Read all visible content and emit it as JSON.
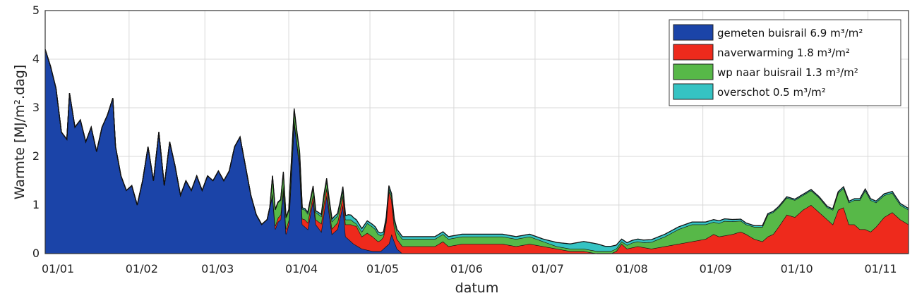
{
  "chart_data": {
    "type": "area",
    "stacked": true,
    "xlabel": "datum",
    "ylabel": "Warmte [MJ/m².dag]",
    "ylim": [
      0,
      5
    ],
    "y_ticks": [
      "0",
      "1",
      "2",
      "3",
      "4",
      "5"
    ],
    "x_ticks": [
      {
        "label": "01/01",
        "day": 1
      },
      {
        "label": "01/02",
        "day": 32
      },
      {
        "label": "01/03",
        "day": 60
      },
      {
        "label": "01/04",
        "day": 91
      },
      {
        "label": "01/05",
        "day": 121
      },
      {
        "label": "01/06",
        "day": 152
      },
      {
        "label": "01/07",
        "day": 182
      },
      {
        "label": "01/08",
        "day": 213
      },
      {
        "label": "01/09",
        "day": 244
      },
      {
        "label": "01/10",
        "day": 274
      },
      {
        "label": "01/11",
        "day": 305
      }
    ],
    "xlim_days": [
      1,
      320
    ],
    "grid": true,
    "legend_position": "top-right",
    "series": [
      {
        "name": "gemeten buisrail 6.9 m³/m²",
        "color": "#1b44a8",
        "points": [
          [
            1,
            4.2
          ],
          [
            3,
            3.85
          ],
          [
            5,
            3.4
          ],
          [
            7,
            2.5
          ],
          [
            9,
            2.35
          ],
          [
            10,
            3.3
          ],
          [
            12,
            2.6
          ],
          [
            14,
            2.75
          ],
          [
            16,
            2.3
          ],
          [
            18,
            2.6
          ],
          [
            20,
            2.1
          ],
          [
            22,
            2.6
          ],
          [
            24,
            2.85
          ],
          [
            26,
            3.2
          ],
          [
            27,
            2.2
          ],
          [
            29,
            1.6
          ],
          [
            31,
            1.3
          ],
          [
            33,
            1.4
          ],
          [
            35,
            1.0
          ],
          [
            37,
            1.5
          ],
          [
            39,
            2.2
          ],
          [
            41,
            1.5
          ],
          [
            43,
            2.5
          ],
          [
            45,
            1.4
          ],
          [
            47,
            2.3
          ],
          [
            49,
            1.8
          ],
          [
            51,
            1.2
          ],
          [
            53,
            1.5
          ],
          [
            55,
            1.3
          ],
          [
            57,
            1.6
          ],
          [
            59,
            1.3
          ],
          [
            61,
            1.6
          ],
          [
            63,
            1.5
          ],
          [
            65,
            1.7
          ],
          [
            67,
            1.5
          ],
          [
            69,
            1.7
          ],
          [
            71,
            2.2
          ],
          [
            73,
            2.4
          ],
          [
            75,
            1.8
          ],
          [
            77,
            1.2
          ],
          [
            79,
            0.8
          ],
          [
            81,
            0.6
          ],
          [
            83,
            0.7
          ],
          [
            85,
            1.2
          ],
          [
            86,
            0.5
          ],
          [
            87,
            0.65
          ],
          [
            88,
            0.7
          ],
          [
            89,
            1.3
          ],
          [
            90,
            0.4
          ],
          [
            91,
            0.6
          ],
          [
            93,
            2.7
          ],
          [
            95,
            1.8
          ],
          [
            96,
            0.6
          ],
          [
            98,
            0.5
          ],
          [
            100,
            1.1
          ],
          [
            101,
            0.6
          ],
          [
            103,
            0.45
          ],
          [
            105,
            1.2
          ],
          [
            107,
            0.4
          ],
          [
            109,
            0.5
          ],
          [
            111,
            1.0
          ],
          [
            112,
            0.35
          ],
          [
            115,
            0.2
          ],
          [
            118,
            0.1
          ],
          [
            122,
            0.05
          ],
          [
            125,
            0.05
          ],
          [
            128,
            0.2
          ],
          [
            129,
            0.4
          ],
          [
            131,
            0.1
          ],
          [
            133,
            0.0
          ],
          [
            320,
            0.0
          ]
        ]
      },
      {
        "name": "naverwarming 1.8 m³/m²",
        "color": "#ee2a1c",
        "points": [
          [
            1,
            0
          ],
          [
            84,
            0
          ],
          [
            85,
            0.05
          ],
          [
            88,
            0.1
          ],
          [
            90,
            0.1
          ],
          [
            94,
            0.05
          ],
          [
            97,
            0.15
          ],
          [
            101,
            0.1
          ],
          [
            104,
            0.2
          ],
          [
            106,
            0.1
          ],
          [
            110,
            0.15
          ],
          [
            112,
            0.25
          ],
          [
            114,
            0.35
          ],
          [
            116,
            0.4
          ],
          [
            118,
            0.25
          ],
          [
            120,
            0.35
          ],
          [
            122,
            0.3
          ],
          [
            124,
            0.2
          ],
          [
            126,
            0.25
          ],
          [
            127,
            0.5
          ],
          [
            128,
            1.1
          ],
          [
            129,
            0.7
          ],
          [
            130,
            0.3
          ],
          [
            131,
            0.2
          ],
          [
            133,
            0.15
          ],
          [
            136,
            0.15
          ],
          [
            140,
            0.15
          ],
          [
            145,
            0.15
          ],
          [
            148,
            0.25
          ],
          [
            150,
            0.15
          ],
          [
            155,
            0.2
          ],
          [
            160,
            0.2
          ],
          [
            165,
            0.2
          ],
          [
            170,
            0.2
          ],
          [
            175,
            0.15
          ],
          [
            180,
            0.2
          ],
          [
            185,
            0.15
          ],
          [
            190,
            0.1
          ],
          [
            195,
            0.05
          ],
          [
            200,
            0.05
          ],
          [
            205,
            0.0
          ],
          [
            210,
            0.0
          ],
          [
            212,
            0.05
          ],
          [
            214,
            0.2
          ],
          [
            216,
            0.1
          ],
          [
            220,
            0.15
          ],
          [
            225,
            0.1
          ],
          [
            230,
            0.15
          ],
          [
            235,
            0.2
          ],
          [
            240,
            0.25
          ],
          [
            245,
            0.3
          ],
          [
            248,
            0.4
          ],
          [
            250,
            0.35
          ],
          [
            255,
            0.4
          ],
          [
            258,
            0.45
          ],
          [
            260,
            0.4
          ],
          [
            263,
            0.3
          ],
          [
            266,
            0.25
          ],
          [
            268,
            0.35
          ],
          [
            270,
            0.4
          ],
          [
            272,
            0.55
          ],
          [
            275,
            0.8
          ],
          [
            278,
            0.75
          ],
          [
            281,
            0.9
          ],
          [
            284,
            1.0
          ],
          [
            287,
            0.85
          ],
          [
            290,
            0.7
          ],
          [
            292,
            0.6
          ],
          [
            294,
            0.9
          ],
          [
            296,
            0.95
          ],
          [
            298,
            0.6
          ],
          [
            300,
            0.6
          ],
          [
            302,
            0.5
          ],
          [
            304,
            0.5
          ],
          [
            306,
            0.45
          ],
          [
            308,
            0.55
          ],
          [
            311,
            0.75
          ],
          [
            314,
            0.85
          ],
          [
            317,
            0.7
          ],
          [
            320,
            0.6
          ]
        ]
      },
      {
        "name": "wp naar buisrail 1.3 m³/m²",
        "color": "#57b848",
        "points": [
          [
            1,
            0
          ],
          [
            84,
            0
          ],
          [
            85,
            0.35
          ],
          [
            88,
            0.3
          ],
          [
            91,
            0.2
          ],
          [
            94,
            0.2
          ],
          [
            97,
            0.2
          ],
          [
            100,
            0.15
          ],
          [
            104,
            0.15
          ],
          [
            108,
            0.15
          ],
          [
            112,
            0.1
          ],
          [
            114,
            0.1
          ],
          [
            116,
            0.05
          ],
          [
            118,
            0.1
          ],
          [
            120,
            0.2
          ],
          [
            123,
            0.2
          ],
          [
            126,
            0.05
          ],
          [
            128,
            0.05
          ],
          [
            131,
            0.15
          ],
          [
            135,
            0.15
          ],
          [
            140,
            0.15
          ],
          [
            145,
            0.15
          ],
          [
            150,
            0.15
          ],
          [
            155,
            0.15
          ],
          [
            160,
            0.15
          ],
          [
            165,
            0.15
          ],
          [
            170,
            0.15
          ],
          [
            175,
            0.15
          ],
          [
            180,
            0.15
          ],
          [
            185,
            0.1
          ],
          [
            190,
            0.05
          ],
          [
            195,
            0.05
          ],
          [
            200,
            0.05
          ],
          [
            205,
            0.05
          ],
          [
            210,
            0.05
          ],
          [
            214,
            0.05
          ],
          [
            218,
            0.1
          ],
          [
            222,
            0.1
          ],
          [
            226,
            0.15
          ],
          [
            230,
            0.2
          ],
          [
            235,
            0.3
          ],
          [
            240,
            0.35
          ],
          [
            245,
            0.3
          ],
          [
            248,
            0.25
          ],
          [
            252,
            0.3
          ],
          [
            256,
            0.25
          ],
          [
            260,
            0.2
          ],
          [
            263,
            0.25
          ],
          [
            266,
            0.3
          ],
          [
            268,
            0.45
          ],
          [
            270,
            0.45
          ],
          [
            272,
            0.4
          ],
          [
            275,
            0.35
          ],
          [
            278,
            0.35
          ],
          [
            281,
            0.3
          ],
          [
            284,
            0.3
          ],
          [
            287,
            0.3
          ],
          [
            290,
            0.25
          ],
          [
            292,
            0.3
          ],
          [
            294,
            0.35
          ],
          [
            296,
            0.4
          ],
          [
            298,
            0.45
          ],
          [
            300,
            0.5
          ],
          [
            302,
            0.6
          ],
          [
            304,
            0.8
          ],
          [
            306,
            0.65
          ],
          [
            308,
            0.5
          ],
          [
            311,
            0.45
          ],
          [
            314,
            0.4
          ],
          [
            317,
            0.3
          ],
          [
            320,
            0.3
          ]
        ]
      },
      {
        "name": "overschot 0.5 m³/m²",
        "color": "#35c3c3",
        "points": [
          [
            1,
            0
          ],
          [
            84,
            0
          ],
          [
            90,
            0.02
          ],
          [
            100,
            0.03
          ],
          [
            105,
            0.05
          ],
          [
            110,
            0.05
          ],
          [
            113,
            0.1
          ],
          [
            116,
            0.08
          ],
          [
            120,
            0.05
          ],
          [
            125,
            0.05
          ],
          [
            130,
            0.05
          ],
          [
            135,
            0.05
          ],
          [
            140,
            0.05
          ],
          [
            150,
            0.05
          ],
          [
            160,
            0.05
          ],
          [
            170,
            0.05
          ],
          [
            180,
            0.05
          ],
          [
            185,
            0.05
          ],
          [
            190,
            0.08
          ],
          [
            195,
            0.1
          ],
          [
            200,
            0.15
          ],
          [
            205,
            0.15
          ],
          [
            208,
            0.1
          ],
          [
            210,
            0.1
          ],
          [
            214,
            0.05
          ],
          [
            220,
            0.05
          ],
          [
            230,
            0.05
          ],
          [
            240,
            0.05
          ],
          [
            250,
            0.05
          ],
          [
            260,
            0.03
          ],
          [
            270,
            0.02
          ],
          [
            280,
            0.02
          ],
          [
            290,
            0.02
          ],
          [
            300,
            0.03
          ],
          [
            310,
            0.03
          ],
          [
            320,
            0.03
          ]
        ]
      }
    ]
  }
}
